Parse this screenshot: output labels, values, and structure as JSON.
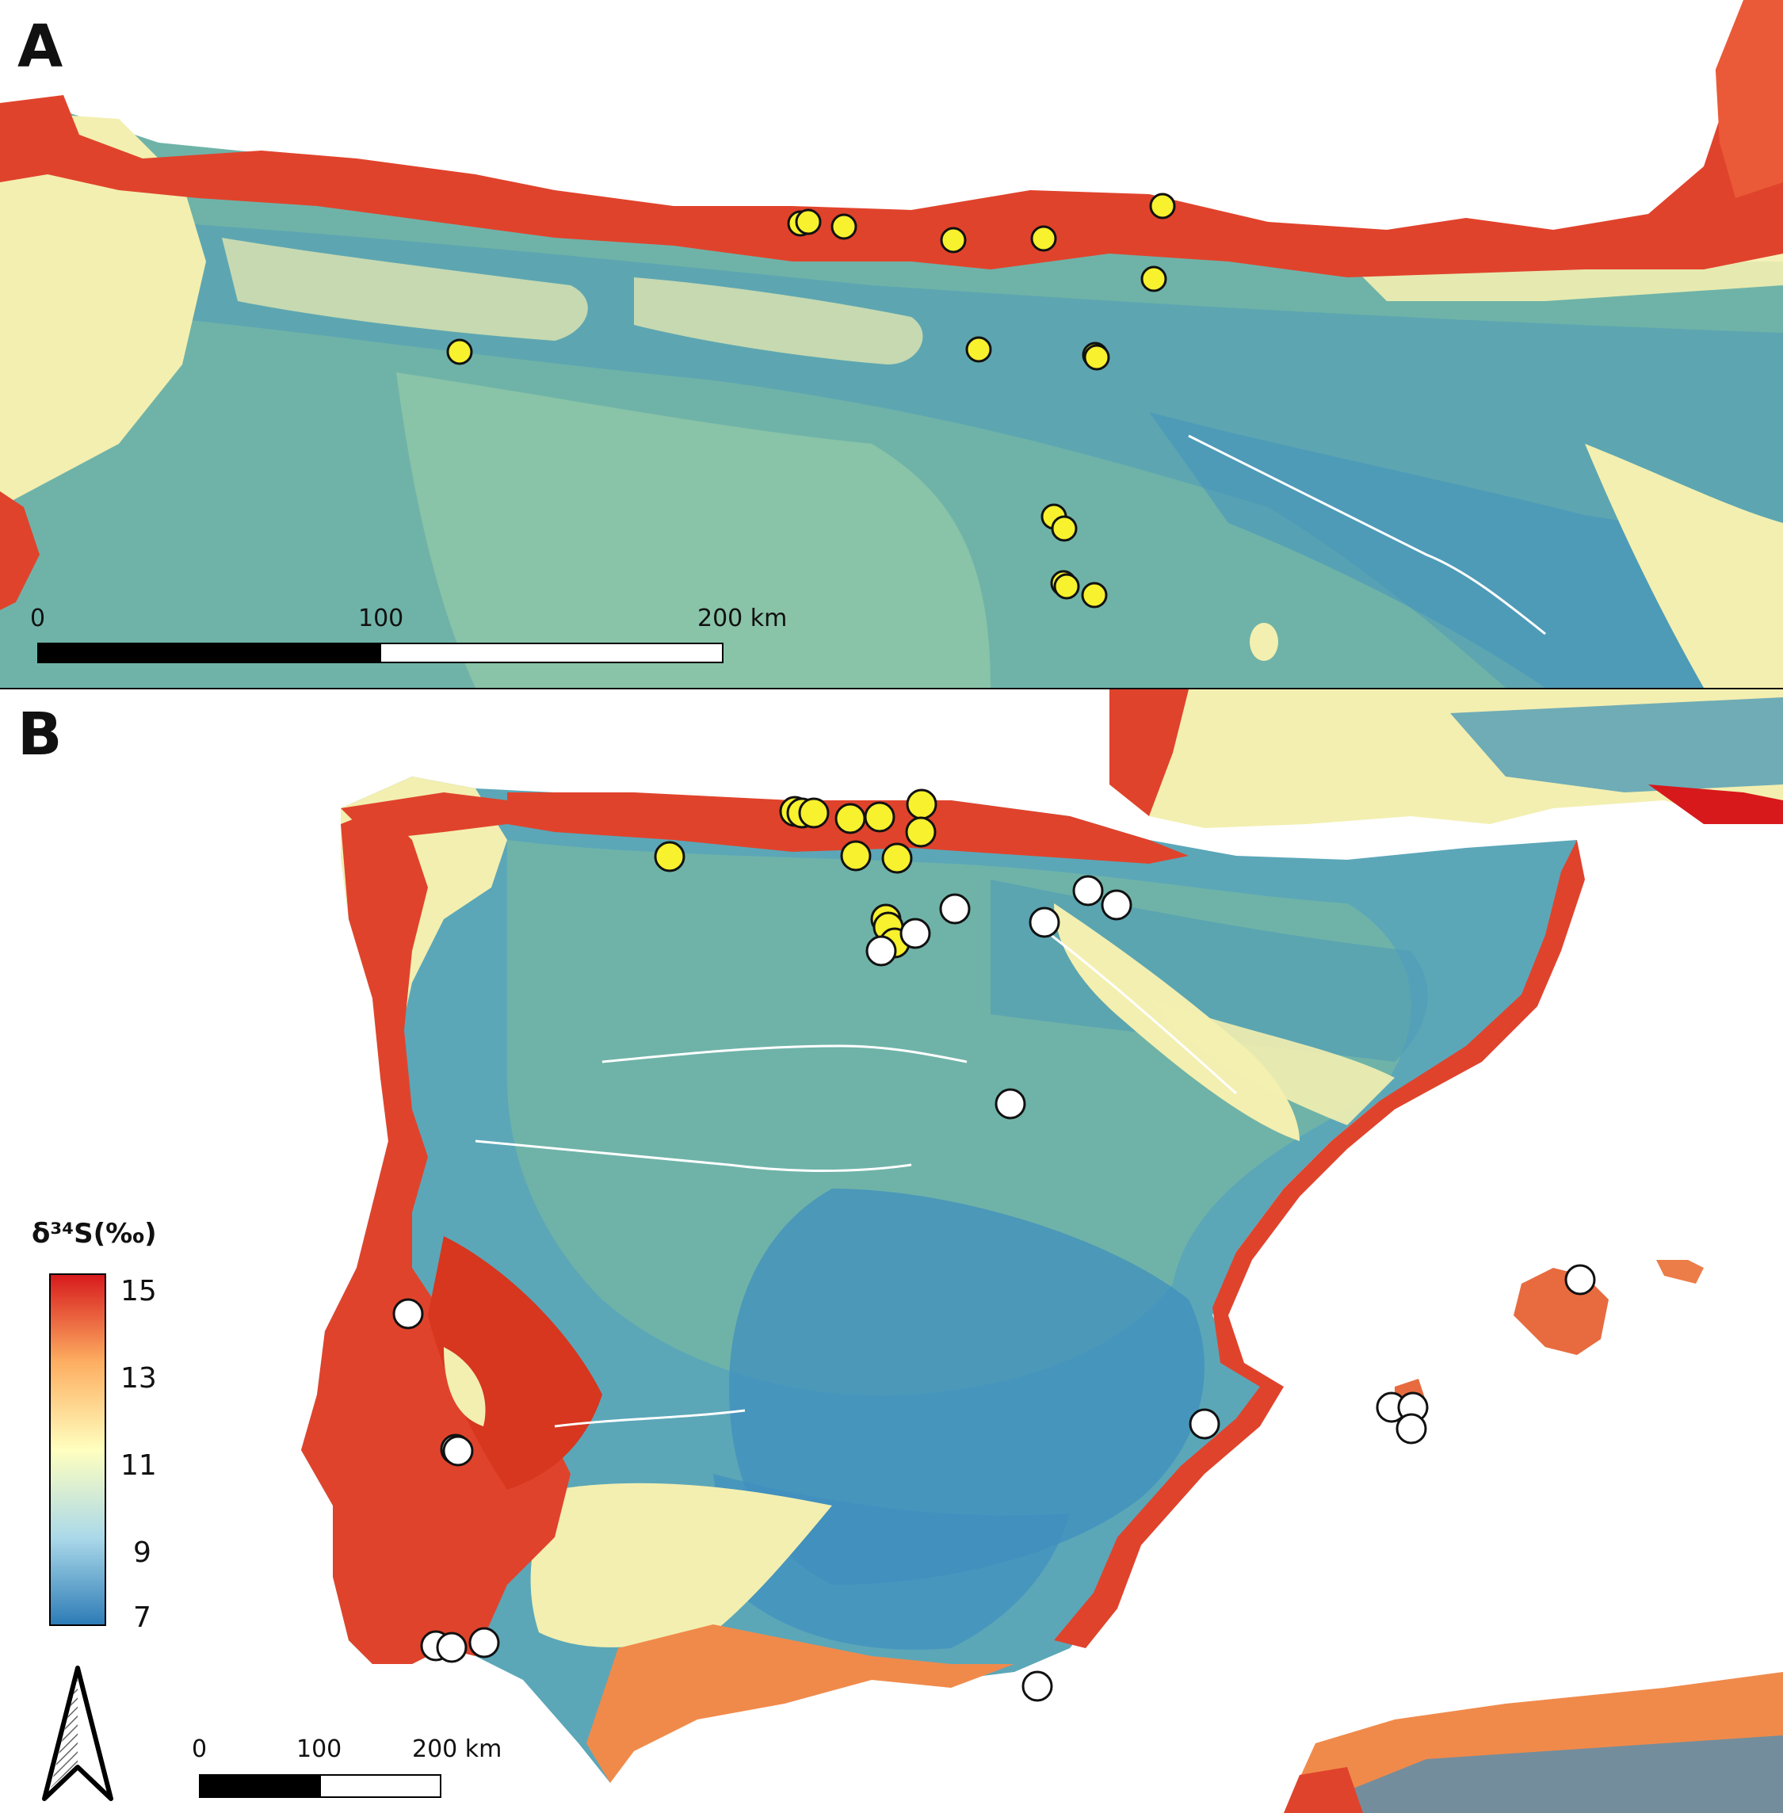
{
  "panel_a": {
    "label": "A",
    "scalebar": {
      "labels": [
        "0",
        "100",
        "200 km"
      ]
    },
    "sites_yellow": 18
  },
  "panel_b": {
    "label": "B",
    "scalebar": {
      "labels": [
        "0",
        "100",
        "200 km"
      ]
    }
  },
  "legend": {
    "title": "δ³⁴S(‰)",
    "ticks": [
      "15",
      "13",
      "11",
      "9",
      "7"
    ],
    "range": [
      7,
      15
    ],
    "colors": [
      "#2c7bb6",
      "#abd9e9",
      "#ffffbf",
      "#fdae61",
      "#d7191c"
    ]
  },
  "north_arrow": {
    "icon": "north-arrow-icon"
  },
  "colors": {
    "high": "#e0432c",
    "mid": "#f5f3b3",
    "low_mid": "#7bbfae",
    "low": "#3f8fbf",
    "site_yellow": "#f7f12e",
    "site_white": "#ffffff"
  }
}
